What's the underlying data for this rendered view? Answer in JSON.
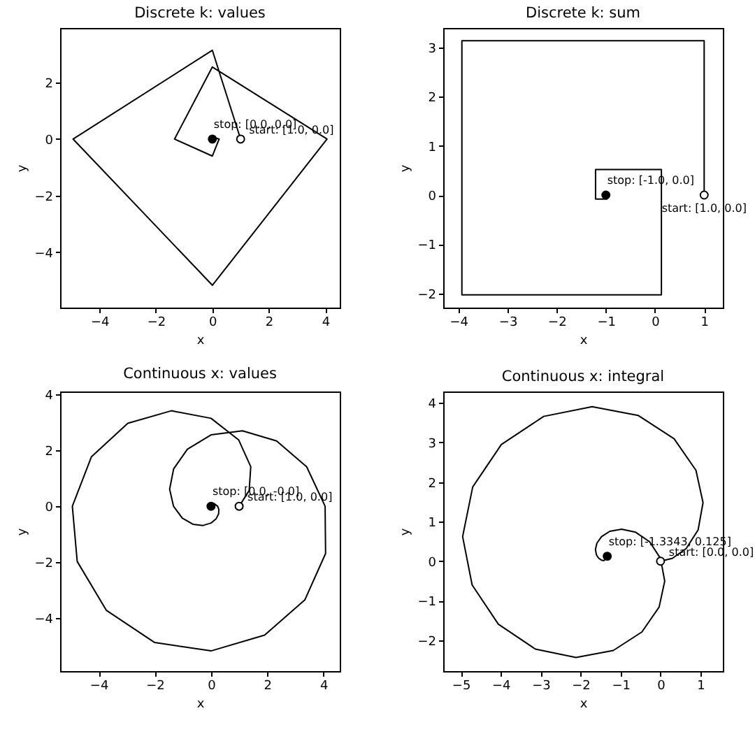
{
  "chart_data": [
    {
      "type": "line",
      "title": "Discrete k: values",
      "xlabel": "x",
      "ylabel": "y",
      "xlim": [
        -5.39,
        4.51
      ],
      "ylim": [
        -5.96,
        3.93
      ],
      "xticks": [
        -4,
        -2,
        0,
        2,
        4
      ],
      "yticks": [
        -4,
        -2,
        0,
        2
      ],
      "series": [
        {
          "type": "line",
          "color": "#000000",
          "x": [
            1,
            0,
            -4.93,
            0,
            4.06,
            0,
            -1.34,
            0,
            0.24,
            0,
            -0.03,
            0
          ],
          "values": [
            0,
            3.14,
            0,
            -5.17,
            0,
            2.55,
            0,
            -0.6,
            0,
            0.08,
            0,
            0
          ]
        },
        {
          "type": "scatter",
          "color": "#000000",
          "marker": "circle",
          "x": [
            1
          ],
          "values": [
            0
          ]
        },
        {
          "type": "scatter",
          "color": "#000000",
          "marker": "circle",
          "x": [
            0
          ],
          "values": [
            0
          ]
        }
      ],
      "annotations": [
        {
          "text": "stop: [0.0, 0.0]",
          "x": 0,
          "y": 0
        },
        {
          "text": "start: [1.0, 0.0]",
          "x": 1,
          "y": 0
        }
      ]
    },
    {
      "type": "line",
      "title": "Discrete k: sum",
      "xlabel": "x",
      "ylabel": "y",
      "xlim": [
        -4.31,
        1.38
      ],
      "ylim": [
        -2.29,
        3.4
      ],
      "xticks": [
        -4,
        -3,
        -2,
        -1,
        0,
        1
      ],
      "yticks": [
        -2,
        -1,
        0,
        1,
        2,
        3
      ],
      "series": [
        {
          "type": "line",
          "color": "#000000",
          "x": [
            1,
            1,
            -3.93,
            -3.93,
            0.13,
            0.13,
            -1.21,
            -1.21,
            -0.98,
            -0.98,
            -1
          ],
          "values": [
            0,
            3.14,
            3.14,
            -2.03,
            -2.03,
            0.52,
            0.52,
            -0.08,
            -0.08,
            0.01,
            0
          ]
        },
        {
          "type": "scatter",
          "color": "#000000",
          "marker": "circle",
          "x": [
            1
          ],
          "values": [
            0
          ]
        },
        {
          "type": "scatter",
          "color": "#000000",
          "marker": "circle",
          "x": [
            -1
          ],
          "values": [
            0
          ]
        }
      ],
      "annotations": [
        {
          "text": "stop: [-1.0, 0.0]",
          "x": -1,
          "y": 0
        },
        {
          "text": "start: [1.0, 0.0]",
          "x": 1,
          "y": 0
        }
      ]
    },
    {
      "type": "line",
      "title": "Continuous x: values",
      "xlabel": "x",
      "ylabel": "y",
      "xlim": [
        -5.37,
        4.58
      ],
      "ylim": [
        -5.89,
        4.1
      ],
      "xticks": [
        -4,
        -2,
        0,
        2,
        4
      ],
      "yticks": [
        -4,
        -2,
        0,
        2,
        4
      ],
      "series": [
        {
          "type": "line",
          "color": "#000000",
          "x": [
            1,
            1.357,
            1.414,
            0.982,
            0,
            -1.413,
            -2.962,
            -4.258,
            -4.935,
            -4.762,
            -3.722,
            -2.015,
            0,
            1.907,
            3.341,
            4.076,
            4.059,
            3.403,
            2.333,
            1.117,
            0,
            -0.843,
            -1.332,
            -1.473,
            -1.335,
            -1.023,
            -0.644,
            -0.284,
            0,
            0.184,
            0.27,
            0.277,
            0.235,
            0.1,
            0,
            -0.026,
            0
          ],
          "values": [
            0,
            0.562,
            1.414,
            2.372,
            3.142,
            3.411,
            2.962,
            1.764,
            0,
            -1.972,
            -3.722,
            -4.864,
            -5.168,
            -4.604,
            -3.341,
            -1.688,
            0,
            1.409,
            2.333,
            2.696,
            2.55,
            2.036,
            1.332,
            0.61,
            0,
            -0.424,
            -0.644,
            -0.686,
            -0.599,
            -0.443,
            -0.27,
            -0.115,
            0,
            0.1,
            0.082,
            0,
            0
          ]
        },
        {
          "type": "scatter",
          "color": "#000000",
          "marker": "circle",
          "x": [
            1
          ],
          "values": [
            0
          ]
        },
        {
          "type": "scatter",
          "color": "#000000",
          "marker": "circle",
          "x": [
            0
          ],
          "values": [
            0
          ]
        }
      ],
      "annotations": [
        {
          "text": "stop: [0.0, -0.0]",
          "x": 0,
          "y": 0
        },
        {
          "text": "start: [1.0, 0.0]",
          "x": 1,
          "y": 0
        }
      ]
    },
    {
      "type": "line",
      "title": "Continuous x: integral",
      "xlabel": "x",
      "ylabel": "y",
      "xlim": [
        -5.44,
        1.56
      ],
      "ylim": [
        -2.78,
        4.29
      ],
      "xticks": [
        -5,
        -4,
        -3,
        -2,
        -1,
        0,
        1
      ],
      "yticks": [
        -2,
        -1,
        0,
        1,
        2,
        3,
        4
      ],
      "series": [
        {
          "type": "line",
          "color": "#000000",
          "x": [
            0,
            0.295,
            0.641,
            0.941,
            1.064,
            0.887,
            0.34,
            -0.563,
            -1.712,
            -2.924,
            -3.985,
            -4.702,
            -4.954,
            -4.716,
            -4.06,
            -3.133,
            -2.116,
            -1.183,
            -0.466,
            -0.035,
            0.105,
            0,
            -0.272,
            -0.623,
            -0.974,
            -1.269,
            -1.477,
            -1.593,
            -1.629,
            -1.606,
            -1.549,
            -1.481,
            -1.417,
            -1.334
          ],
          "values": [
            0,
            0.07,
            0.317,
            0.79,
            1.479,
            2.298,
            3.095,
            3.686,
            3.907,
            3.66,
            2.948,
            1.875,
            0.621,
            -0.601,
            -1.594,
            -2.223,
            -2.434,
            -2.258,
            -1.79,
            -1.161,
            -0.505,
            0.068,
            0.489,
            0.732,
            0.808,
            0.755,
            0.621,
            0.455,
            0.294,
            0.164,
            0.075,
            0.027,
            0.013,
            0.125
          ]
        },
        {
          "type": "scatter",
          "color": "#000000",
          "marker": "circle",
          "x": [
            0
          ],
          "values": [
            0
          ]
        },
        {
          "type": "scatter",
          "color": "#000000",
          "marker": "circle",
          "x": [
            -1.334
          ],
          "values": [
            0.125
          ]
        }
      ],
      "annotations": [
        {
          "text": "stop: [-1.3343, 0.125]",
          "x": -1.334,
          "y": 0.125
        },
        {
          "text": "start: [0.0, 0.0]",
          "x": 0,
          "y": 0
        }
      ]
    }
  ]
}
